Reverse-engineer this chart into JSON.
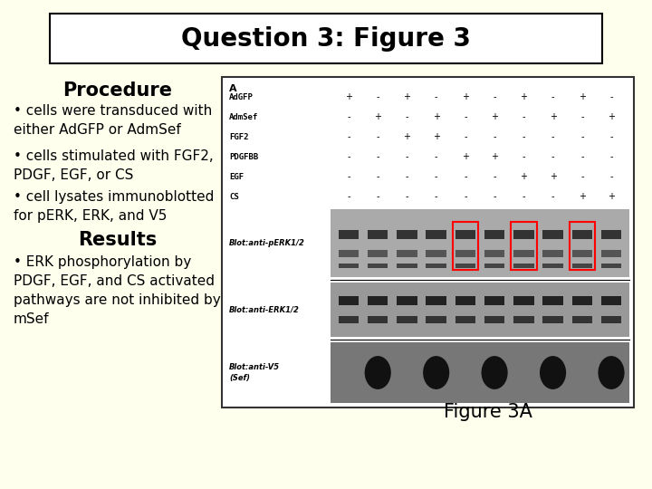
{
  "background_color": "#ffffee",
  "title_box_color": "#ffffff",
  "title_text": "Question 3: Figure 3",
  "title_fontsize": 20,
  "procedure_header": "Procedure",
  "results_header": "Results",
  "bullet1": "• cells were transduced with\neither AdGFP or AdmSef",
  "bullet2": "• cells stimulated with FGF2,\nPDGF, EGF, or CS",
  "bullet3": "• cell lysates immunoblotted\nfor pERK, ERK, and V5",
  "results_bullet": "• ERK phosphorylation by\nPDGF, EGF, and CS activated\npathways are not inhibited by\nmSef",
  "figure_label": "Figure 3A",
  "text_color": "#000000",
  "header_color": "#000000",
  "bullet_fontsize": 11,
  "header_fontsize": 15,
  "figure_label_fontsize": 15,
  "row_labels": [
    "A",
    "AdGFP",
    "AdmSef",
    "FGF2",
    "PDGFBB",
    "EGF",
    "CS"
  ],
  "blot_label1": "Blot:anti-pERK1/2",
  "blot_label2": "Blot:anti-ERK1/2",
  "blot_label3": "Blot:anti-V5\n(Sef)"
}
